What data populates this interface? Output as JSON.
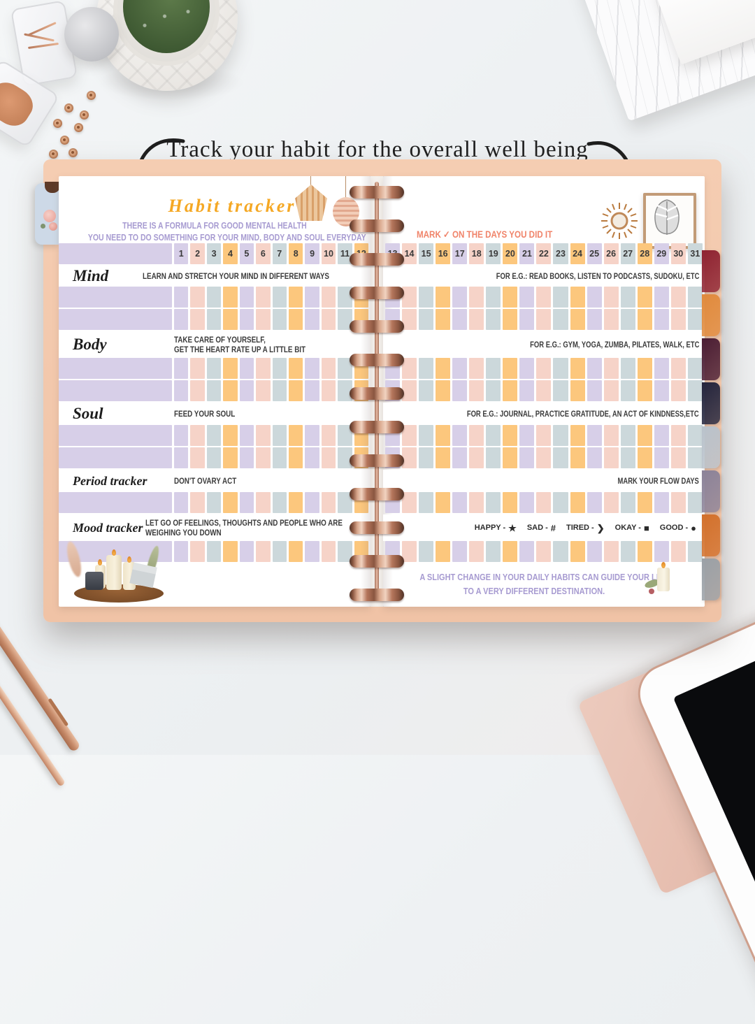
{
  "annotation": {
    "text": "Track your habit for the overall well being"
  },
  "planner": {
    "left_page": {
      "title": "Habit tracker",
      "subtitle_line1": "THERE IS A FORMULA FOR GOOD MENTAL HEALTH",
      "subtitle_line2": "YOU NEED TO DO SOMETHING FOR YOUR MIND, BODY AND SOUL EVERYDAY",
      "days": [
        1,
        2,
        3,
        4,
        5,
        6,
        7,
        8,
        9,
        10,
        11,
        12
      ]
    },
    "right_page": {
      "instruction": "MARK ✓ ON THE DAYS YOU DID IT",
      "days": [
        13,
        14,
        15,
        16,
        17,
        18,
        19,
        20,
        21,
        22,
        23,
        24,
        25,
        26,
        27,
        28,
        29,
        30,
        31
      ],
      "quote_line1": "A SLIGHT CHANGE IN YOUR DAILY HABITS CAN GUIDE YOUR LIFE",
      "quote_line2": "TO A VERY DIFFERENT DESTINATION."
    },
    "sections": [
      {
        "label": "Mind",
        "desc_lines": [
          "LEARN AND STRETCH YOUR MIND IN DIFFERENT WAYS"
        ],
        "example": "FOR E.G.: READ BOOKS, LISTEN TO PODCASTS, SUDOKU, ETC",
        "track_rows": 2
      },
      {
        "label": "Body",
        "desc_lines": [
          "TAKE CARE OF YOURSELF,",
          "GET THE HEART RATE UP A LITTLE BIT"
        ],
        "example": "FOR E.G.: GYM, YOGA, ZUMBA, PILATES, WALK, ETC",
        "track_rows": 2
      },
      {
        "label": "Soul",
        "desc_lines": [
          "FEED YOUR SOUL"
        ],
        "example": "FOR E.G.: JOURNAL, PRACTICE GRATITUDE, AN ACT OF KINDNESS,ETC",
        "track_rows": 2
      },
      {
        "label": "Period tracker",
        "desc_lines": [
          "DON'T OVARY ACT"
        ],
        "example": "MARK YOUR FLOW DAYS",
        "track_rows": 1
      },
      {
        "label": "Mood tracker",
        "desc_lines": [
          "LET GO OF FEELINGS, THOUGHTS AND PEOPLE WHO ARE",
          "WEIGHING YOU DOWN"
        ],
        "example": "",
        "legend": true,
        "track_rows": 1
      }
    ],
    "mood_legend": [
      {
        "name": "happy",
        "label": "HAPPY -",
        "icon": "★"
      },
      {
        "name": "sad",
        "label": "SAD -",
        "icon": "#"
      },
      {
        "name": "tired",
        "label": "TIRED -",
        "icon": "❯"
      },
      {
        "name": "okay",
        "label": "OKAY -",
        "icon": "■"
      },
      {
        "name": "good",
        "label": "GOOD -",
        "icon": "●"
      }
    ],
    "colors": {
      "cell_cycle": [
        "#d7cfe8",
        "#f6d3c8",
        "#ccd8db",
        "#fcc77d"
      ],
      "label_bar": "#d7cfe8",
      "cover": "#f2c8ac",
      "title": "#f5a824",
      "subtitle": "#a79bd1",
      "instruction": "#f0846a",
      "quote": "#a79bd1",
      "spiral": "#c08a6e"
    },
    "side_tabs": [
      "#8e2231",
      "#e08a3c",
      "#4a1d33",
      "#23243c",
      "#b9c2cb",
      "#8b8298",
      "#d2702b",
      "#9aa0a6"
    ]
  }
}
